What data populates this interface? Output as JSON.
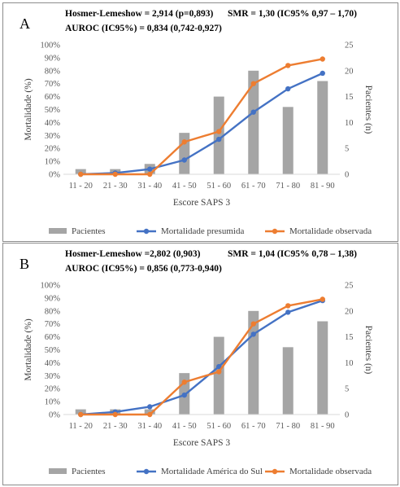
{
  "chart_data": [
    {
      "type": "bar+line",
      "panel_letter": "A",
      "stats_line1_left": "Hosmer-Lemeshow = 2,914 (p=0,893)",
      "stats_line1_right": "SMR = 1,30 (IC95% 0,97 – 1,70)",
      "stats_line2": "AUROC (IC95%) = 0,834 (0,742-0,927)",
      "categories": [
        "11 - 20",
        "21 - 30",
        "31 - 40",
        "41 - 50",
        "51 - 60",
        "61 - 70",
        "71 - 80",
        "81 - 90"
      ],
      "xlabel": "Escore SAPS 3",
      "ylabel_left": "Mortalidade (%)",
      "ylabel_right": "Pacientes (n)",
      "yticks_left": [
        "0%",
        "10%",
        "20%",
        "30%",
        "40%",
        "50%",
        "60%",
        "70%",
        "80%",
        "90%",
        "100%"
      ],
      "yticks_right": [
        "0",
        "5",
        "10",
        "15",
        "20",
        "25"
      ],
      "ylim_left": [
        0,
        100
      ],
      "ylim_right": [
        0,
        25
      ],
      "bars": {
        "name": "Pacientes",
        "values": [
          1,
          1,
          2,
          8,
          15,
          20,
          13,
          18
        ],
        "color": "#a5a5a5"
      },
      "series": [
        {
          "name": "Mortalidade presumida",
          "values": [
            0,
            1,
            4,
            11,
            27,
            48,
            66,
            78
          ],
          "color": "#4472c4"
        },
        {
          "name": "Mortalidade observada",
          "values": [
            0,
            0,
            0,
            25,
            33,
            70,
            84,
            89
          ],
          "color": "#ed7d31"
        }
      ]
    },
    {
      "type": "bar+line",
      "panel_letter": "B",
      "stats_line1_left": "Hosmer-Lemeshow =2,802 (0,903)",
      "stats_line1_right": "SMR = 1,04 (IC95% 0,78 – 1,38)",
      "stats_line2": "AUROC (IC95%) = 0,856 (0,773-0,940)",
      "categories": [
        "11 - 20",
        "21 - 30",
        "31 - 40",
        "41 - 50",
        "51 - 60",
        "61 - 70",
        "71 - 80",
        "81 - 90"
      ],
      "xlabel": "Escore SAPS 3",
      "ylabel_left": "Mortalidade (%)",
      "ylabel_right": "Pacientes (n)",
      "yticks_left": [
        "0%",
        "10%",
        "20%",
        "30%",
        "40%",
        "50%",
        "60%",
        "70%",
        "80%",
        "90%",
        "100%"
      ],
      "yticks_right": [
        "0",
        "5",
        "10",
        "15",
        "20",
        "25"
      ],
      "ylim_left": [
        0,
        100
      ],
      "ylim_right": [
        0,
        25
      ],
      "bars": {
        "name": "Pacientes",
        "values": [
          1,
          1,
          1,
          8,
          15,
          20,
          13,
          18
        ],
        "color": "#a5a5a5"
      },
      "series": [
        {
          "name": "Mortalidade América do Sul",
          "values": [
            0,
            2,
            6,
            15,
            37,
            62,
            79,
            88
          ],
          "color": "#4472c4"
        },
        {
          "name": "Mortalidade observada",
          "values": [
            0,
            0,
            0,
            25,
            33,
            70,
            84,
            89
          ],
          "color": "#ed7d31"
        }
      ]
    }
  ]
}
